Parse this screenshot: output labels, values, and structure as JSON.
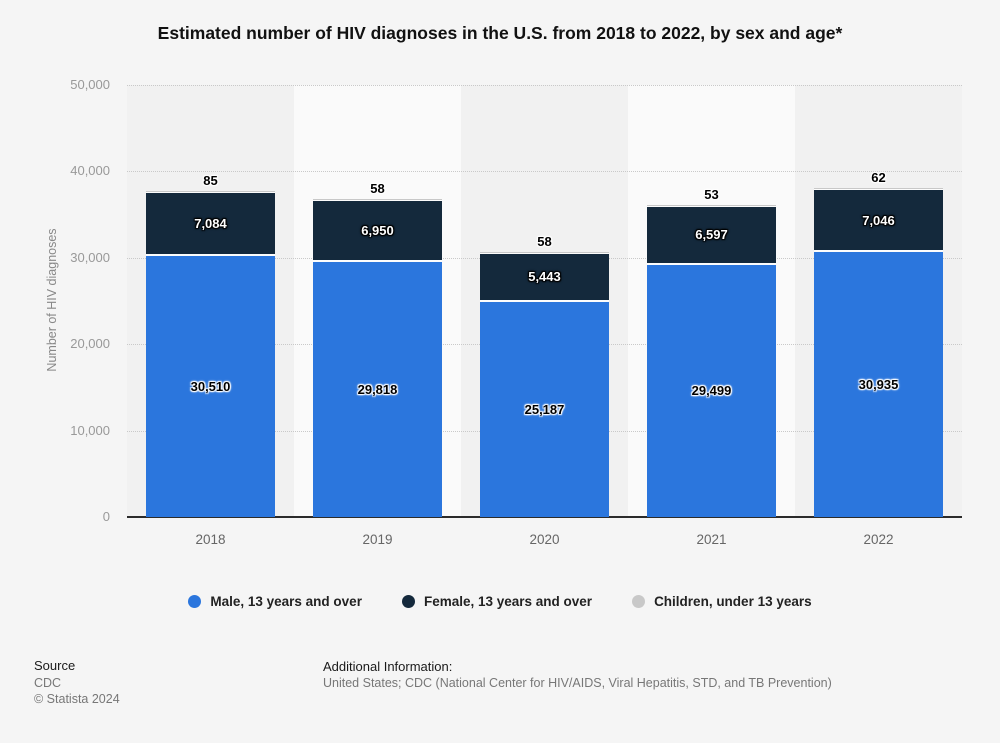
{
  "title": "Estimated number of HIV diagnoses in the U.S. from 2018 to 2022, by sex and age*",
  "chart_data": {
    "type": "bar",
    "stacked": true,
    "categories": [
      "2018",
      "2019",
      "2020",
      "2021",
      "2022"
    ],
    "series": [
      {
        "name": "Male, 13 years and over",
        "color": "#2b76dd",
        "values": [
          30510,
          29818,
          25187,
          29499,
          30935
        ],
        "labels": [
          "30,510",
          "29,818",
          "25,187",
          "29,499",
          "30,935"
        ],
        "label_position": "inside",
        "label_style": "dark-text-white-halo"
      },
      {
        "name": "Female, 13 years and over",
        "color": "#14293c",
        "values": [
          7084,
          6950,
          5443,
          6597,
          7046
        ],
        "labels": [
          "7,084",
          "6,950",
          "5,443",
          "6,597",
          "7,046"
        ],
        "label_position": "inside",
        "label_style": "white-text-dark-halo"
      },
      {
        "name": "Children, under 13 years",
        "color": "#c8c8c8",
        "values": [
          85,
          58,
          58,
          53,
          62
        ],
        "labels": [
          "85",
          "58",
          "58",
          "53",
          "62"
        ],
        "label_position": "above",
        "label_style": "dark-text-white-halo"
      }
    ],
    "ylabel": "Number of HIV diagnoses",
    "ylim": [
      0,
      50000
    ],
    "ytick_interval": 10000,
    "ytick_labels": [
      "0",
      "10,000",
      "20,000",
      "30,000",
      "40,000",
      "50,000"
    ],
    "grid": "horizontal-dotted",
    "legend_position": "bottom",
    "plot_background": "alternating vertical bands"
  },
  "footer": {
    "source_label": "Source",
    "source_value": "CDC",
    "copyright": "© Statista 2024",
    "additional_label": "Additional Information:",
    "additional_value": "United States; CDC (National Center for HIV/AIDS, Viral Hepatitis, STD, and TB Prevention)"
  },
  "colors": {
    "background": "#f5f5f5",
    "band_dark": "#f1f1f1",
    "band_light": "#fafafa",
    "axis_line": "#2b2b2b",
    "male_blue": "#2b76dd",
    "female_navy": "#14293c",
    "children_gray": "#c8c8c8"
  }
}
